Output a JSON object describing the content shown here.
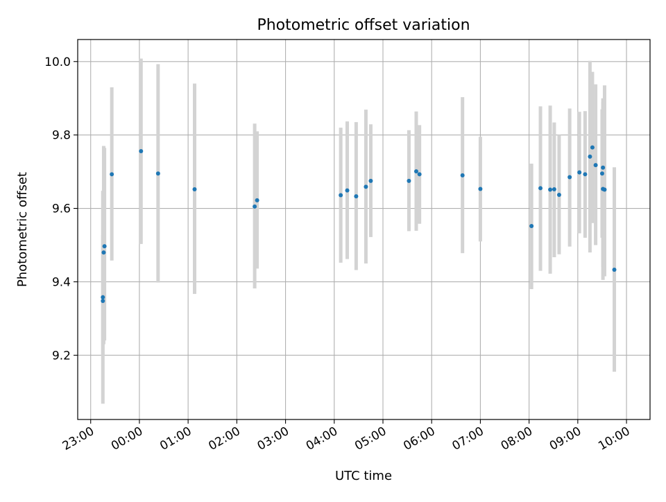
{
  "chart_data": {
    "type": "scatter",
    "title": "Photometric offset variation",
    "xlabel": "UTC time",
    "ylabel": "Photometric offset",
    "x_tick_labels": [
      "23:00",
      "00:00",
      "01:00",
      "02:00",
      "03:00",
      "04:00",
      "05:00",
      "06:00",
      "07:00",
      "08:00",
      "09:00",
      "10:00"
    ],
    "y_tick_labels": [
      "9.2",
      "9.4",
      "9.6",
      "9.8",
      "10.0"
    ],
    "y_ticks": [
      9.2,
      9.4,
      9.6,
      9.8,
      10.0
    ],
    "xlim": [
      "22:44",
      "10:29"
    ],
    "ylim": [
      9.025,
      10.06
    ],
    "grid": true,
    "colors": {
      "point": "#1f77b4",
      "errorbar": "#d3d3d3",
      "grid": "#b0b0b0"
    },
    "points": [
      {
        "t": "23:15",
        "y": 9.348,
        "lo": 9.068,
        "hi": 9.648
      },
      {
        "t": "23:15",
        "y": 9.358,
        "lo": 9.198,
        "hi": 9.528
      },
      {
        "t": "23:16",
        "y": 9.48,
        "lo": 9.23,
        "hi": 9.77
      },
      {
        "t": "23:17",
        "y": 9.497,
        "lo": 9.24,
        "hi": 9.765
      },
      {
        "t": "23:26",
        "y": 9.693,
        "lo": 9.458,
        "hi": 9.93
      },
      {
        "t": "00:02",
        "y": 9.756,
        "lo": 9.503,
        "hi": 10.008
      },
      {
        "t": "00:23",
        "y": 9.695,
        "lo": 9.398,
        "hi": 9.993
      },
      {
        "t": "01:08",
        "y": 9.652,
        "lo": 9.367,
        "hi": 9.94
      },
      {
        "t": "02:22",
        "y": 9.605,
        "lo": 9.382,
        "hi": 9.831
      },
      {
        "t": "02:25",
        "y": 9.622,
        "lo": 9.436,
        "hi": 9.81
      },
      {
        "t": "04:08",
        "y": 9.636,
        "lo": 9.452,
        "hi": 9.82
      },
      {
        "t": "04:16",
        "y": 9.649,
        "lo": 9.462,
        "hi": 9.837
      },
      {
        "t": "04:27",
        "y": 9.633,
        "lo": 9.432,
        "hi": 9.835
      },
      {
        "t": "04:39",
        "y": 9.659,
        "lo": 9.45,
        "hi": 9.869
      },
      {
        "t": "04:45",
        "y": 9.675,
        "lo": 9.522,
        "hi": 9.829
      },
      {
        "t": "05:32",
        "y": 9.675,
        "lo": 9.538,
        "hi": 9.813
      },
      {
        "t": "05:41",
        "y": 9.701,
        "lo": 9.539,
        "hi": 9.864
      },
      {
        "t": "05:45",
        "y": 9.693,
        "lo": 9.558,
        "hi": 9.827
      },
      {
        "t": "06:38",
        "y": 9.69,
        "lo": 9.478,
        "hi": 9.903
      },
      {
        "t": "07:00",
        "y": 9.653,
        "lo": 9.51,
        "hi": 9.795
      },
      {
        "t": "08:03",
        "y": 9.552,
        "lo": 9.38,
        "hi": 9.722
      },
      {
        "t": "08:14",
        "y": 9.655,
        "lo": 9.43,
        "hi": 9.878
      },
      {
        "t": "08:26",
        "y": 9.651,
        "lo": 9.422,
        "hi": 9.88
      },
      {
        "t": "08:31",
        "y": 9.652,
        "lo": 9.467,
        "hi": 9.834
      },
      {
        "t": "08:37",
        "y": 9.637,
        "lo": 9.475,
        "hi": 9.8
      },
      {
        "t": "08:50",
        "y": 9.685,
        "lo": 9.496,
        "hi": 9.872
      },
      {
        "t": "09:02",
        "y": 9.698,
        "lo": 9.532,
        "hi": 9.863
      },
      {
        "t": "09:09",
        "y": 9.693,
        "lo": 9.52,
        "hi": 9.865
      },
      {
        "t": "09:15",
        "y": 9.741,
        "lo": 9.48,
        "hi": 10.002
      },
      {
        "t": "09:18",
        "y": 9.766,
        "lo": 9.56,
        "hi": 9.972
      },
      {
        "t": "09:22",
        "y": 9.718,
        "lo": 9.5,
        "hi": 9.938
      },
      {
        "t": "09:30",
        "y": 9.695,
        "lo": 9.52,
        "hi": 9.87
      },
      {
        "t": "09:31",
        "y": 9.711,
        "lo": 9.44,
        "hi": 9.89
      },
      {
        "t": "09:31",
        "y": 9.653,
        "lo": 9.405,
        "hi": 9.9
      },
      {
        "t": "09:33",
        "y": 9.651,
        "lo": 9.415,
        "hi": 9.935
      },
      {
        "t": "09:45",
        "y": 9.433,
        "lo": 9.155,
        "hi": 9.712
      }
    ]
  }
}
